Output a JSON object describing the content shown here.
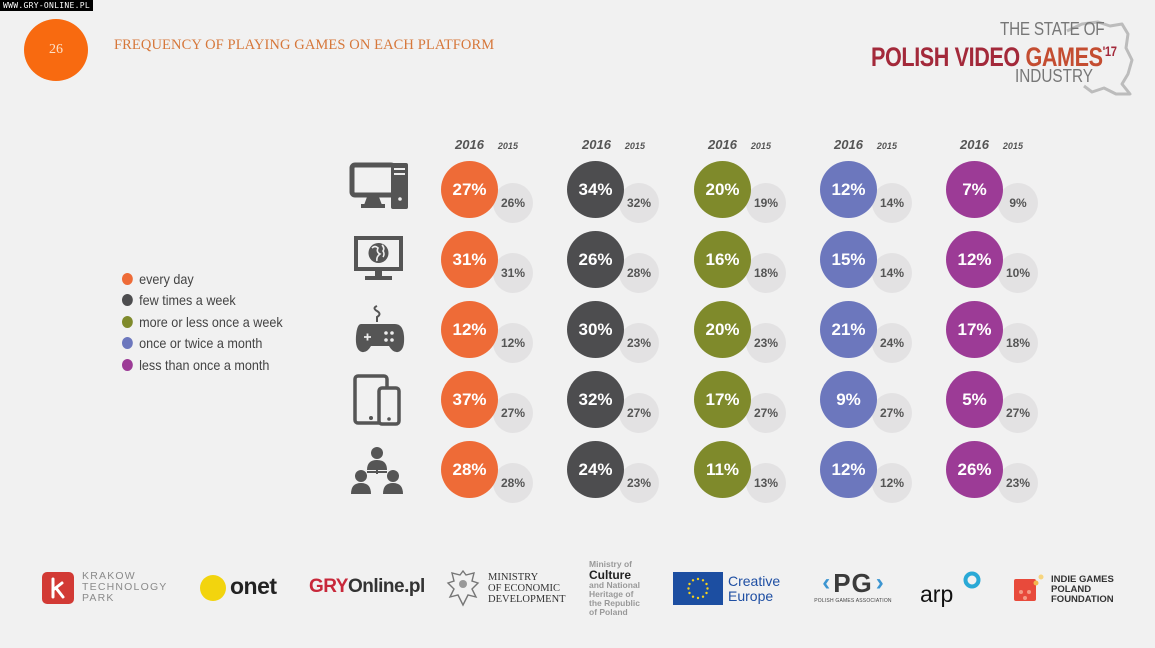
{
  "watermark": "WWW.GRY-ONLINE.PL",
  "page_number": "26",
  "title": "FREQUENCY OF PLAYING GAMES ON EACH PLATFORM",
  "brand": {
    "line1": "THE STATE OF",
    "line2a": "POLISH VIDEO ",
    "line2b": "GAMES",
    "year": "'17",
    "line3": "INDUSTRY"
  },
  "colors": {
    "every_day": "#ee6b37",
    "few_times_week": "#4d4d4f",
    "once_week": "#7f8a2b",
    "once_twice_month": "#6c77bd",
    "less_than_month": "#9c3b96",
    "prev_year_bg": "#e3e2e3"
  },
  "chart_data": {
    "type": "table",
    "title": "FREQUENCY OF PLAYING GAMES ON EACH PLATFORM",
    "year_headers": {
      "current": "2016",
      "previous": "2015"
    },
    "legend": [
      {
        "label": "every day",
        "color": "#ee6b37"
      },
      {
        "label": "few times a week",
        "color": "#4d4d4f"
      },
      {
        "label": "more or less once a week",
        "color": "#7f8a2b"
      },
      {
        "label": "once or twice a month",
        "color": "#6c77bd"
      },
      {
        "label": "less than once a month",
        "color": "#9c3b96"
      }
    ],
    "categories": [
      "every day",
      "few times a week",
      "more or less once a week",
      "once or twice a month",
      "less than once a month"
    ],
    "platforms": [
      {
        "name": "PC",
        "icon": "desktop-computer-icon",
        "v2016": [
          "27%",
          "34%",
          "20%",
          "12%",
          "7%"
        ],
        "v2015": [
          "26%",
          "32%",
          "19%",
          "14%",
          "9%"
        ]
      },
      {
        "name": "Browser / online",
        "icon": "monitor-globe-icon",
        "v2016": [
          "31%",
          "26%",
          "16%",
          "15%",
          "12%"
        ],
        "v2015": [
          "31%",
          "28%",
          "18%",
          "14%",
          "10%"
        ]
      },
      {
        "name": "Console",
        "icon": "gamepad-icon",
        "v2016": [
          "12%",
          "30%",
          "20%",
          "21%",
          "17%"
        ],
        "v2015": [
          "12%",
          "23%",
          "23%",
          "24%",
          "18%"
        ]
      },
      {
        "name": "Mobile",
        "icon": "tablet-phone-icon",
        "v2016": [
          "37%",
          "32%",
          "17%",
          "9%",
          "5%"
        ],
        "v2015": [
          "27%",
          "27%",
          "27%",
          "27%",
          "27%"
        ]
      },
      {
        "name": "Social",
        "icon": "people-network-icon",
        "v2016": [
          "28%",
          "24%",
          "11%",
          "12%",
          "26%"
        ],
        "v2015": [
          "28%",
          "23%",
          "13%",
          "12%",
          "23%"
        ]
      }
    ]
  },
  "sponsors": {
    "ktp": [
      "KRAKOW",
      "TECHNOLOGY",
      "PARK"
    ],
    "onet": "onet",
    "gry_a": "GRY",
    "gry_b": "Online.pl",
    "med": [
      "MINISTRY",
      "OF ECONOMIC",
      "DEVELOPMENT"
    ],
    "mkidn": [
      "Ministry of",
      "Culture",
      "and National",
      "Heritage of",
      "the Republic",
      "of Poland"
    ],
    "ce": [
      "Creative",
      "Europe"
    ],
    "pg": "PG",
    "pg_sub": "POLISH GAMES ASSOCIATION",
    "arp": "arp",
    "igpf": [
      "INDIE GAMES",
      "POLAND",
      "FOUNDATION"
    ]
  }
}
